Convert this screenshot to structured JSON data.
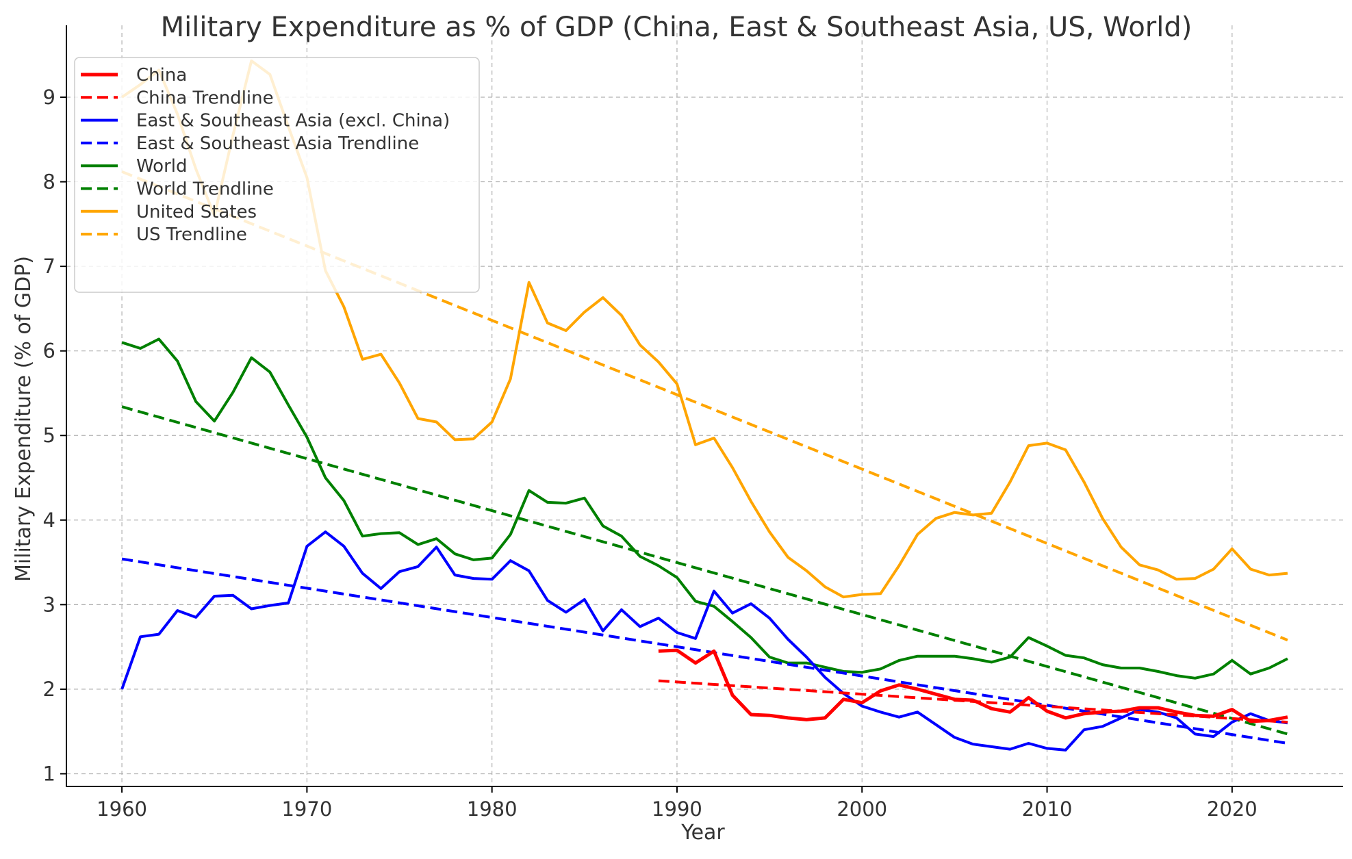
{
  "chart_data": {
    "type": "line",
    "title": "Military Expenditure as % of GDP (China, East & Southeast Asia, US, World)",
    "xlabel": "Year",
    "ylabel": "Military Expenditure (% of GDP)",
    "xlim": [
      1957,
      2026
    ],
    "ylim": [
      0.85,
      9.85
    ],
    "xticks": [
      1960,
      1970,
      1980,
      1990,
      2000,
      2010,
      2020
    ],
    "yticks": [
      1,
      2,
      3,
      4,
      5,
      6,
      7,
      8,
      9
    ],
    "grid": true,
    "legend_position": "top-left",
    "series": [
      {
        "name": "China",
        "color": "#ff0000",
        "style": "solid",
        "width": 5,
        "x": [
          1989,
          1990,
          1991,
          1992,
          1993,
          1994,
          1995,
          1996,
          1997,
          1998,
          1999,
          2000,
          2001,
          2002,
          2003,
          2004,
          2005,
          2006,
          2007,
          2008,
          2009,
          2010,
          2011,
          2012,
          2013,
          2014,
          2015,
          2016,
          2017,
          2018,
          2019,
          2020,
          2021,
          2022,
          2023
        ],
        "y": [
          2.45,
          2.46,
          2.31,
          2.45,
          1.93,
          1.7,
          1.69,
          1.66,
          1.64,
          1.66,
          1.88,
          1.84,
          1.98,
          2.05,
          2.0,
          1.94,
          1.88,
          1.87,
          1.77,
          1.73,
          1.9,
          1.74,
          1.66,
          1.71,
          1.73,
          1.74,
          1.78,
          1.78,
          1.73,
          1.69,
          1.68,
          1.76,
          1.62,
          1.63,
          1.67
        ]
      },
      {
        "name": "China Trendline",
        "color": "#ff0000",
        "style": "dashed",
        "width": 4,
        "x": [
          1989,
          2023
        ],
        "y": [
          2.1,
          1.61
        ]
      },
      {
        "name": "East & Southeast Asia (excl. China)",
        "color": "#0000ff",
        "style": "solid",
        "width": 4,
        "x": [
          1960,
          1961,
          1962,
          1963,
          1964,
          1965,
          1966,
          1967,
          1968,
          1969,
          1970,
          1971,
          1972,
          1973,
          1974,
          1975,
          1976,
          1977,
          1978,
          1979,
          1980,
          1981,
          1982,
          1983,
          1984,
          1985,
          1986,
          1987,
          1988,
          1989,
          1990,
          1991,
          1992,
          1993,
          1994,
          1995,
          1996,
          1997,
          1998,
          1999,
          2000,
          2001,
          2002,
          2003,
          2004,
          2005,
          2006,
          2007,
          2008,
          2009,
          2010,
          2011,
          2012,
          2013,
          2014,
          2015,
          2016,
          2017,
          2018,
          2019,
          2020,
          2021,
          2022,
          2023
        ],
        "y": [
          2.0,
          2.62,
          2.65,
          2.93,
          2.85,
          3.1,
          3.11,
          2.95,
          2.99,
          3.02,
          3.69,
          3.86,
          3.69,
          3.37,
          3.19,
          3.39,
          3.45,
          3.68,
          3.35,
          3.31,
          3.3,
          3.52,
          3.4,
          3.05,
          2.91,
          3.06,
          2.69,
          2.94,
          2.74,
          2.84,
          2.67,
          2.6,
          3.16,
          2.9,
          3.01,
          2.84,
          2.59,
          2.38,
          2.14,
          1.95,
          1.8,
          1.73,
          1.67,
          1.73,
          1.58,
          1.43,
          1.35,
          1.32,
          1.29,
          1.36,
          1.3,
          1.28,
          1.52,
          1.56,
          1.66,
          1.76,
          1.73,
          1.66,
          1.47,
          1.44,
          1.61,
          1.71,
          1.63,
          1.6
        ]
      },
      {
        "name": "East & Southeast Asia Trendline",
        "color": "#0000ff",
        "style": "dashed",
        "width": 4,
        "x": [
          1960,
          2023
        ],
        "y": [
          3.54,
          1.36
        ]
      },
      {
        "name": "World",
        "color": "#008000",
        "style": "solid",
        "width": 4,
        "x": [
          1960,
          1961,
          1962,
          1963,
          1964,
          1965,
          1966,
          1967,
          1968,
          1969,
          1970,
          1971,
          1972,
          1973,
          1974,
          1975,
          1976,
          1977,
          1978,
          1979,
          1980,
          1981,
          1982,
          1983,
          1984,
          1985,
          1986,
          1987,
          1988,
          1989,
          1990,
          1991,
          1992,
          1993,
          1994,
          1995,
          1996,
          1997,
          1998,
          1999,
          2000,
          2001,
          2002,
          2003,
          2004,
          2005,
          2006,
          2007,
          2008,
          2009,
          2010,
          2011,
          2012,
          2013,
          2014,
          2015,
          2016,
          2017,
          2018,
          2019,
          2020,
          2021,
          2022,
          2023
        ],
        "y": [
          6.1,
          6.03,
          6.14,
          5.88,
          5.4,
          5.17,
          5.51,
          5.92,
          5.75,
          5.36,
          4.98,
          4.5,
          4.23,
          3.81,
          3.84,
          3.85,
          3.71,
          3.78,
          3.6,
          3.53,
          3.55,
          3.83,
          4.35,
          4.21,
          4.2,
          4.26,
          3.93,
          3.81,
          3.57,
          3.46,
          3.32,
          3.04,
          2.98,
          2.8,
          2.61,
          2.38,
          2.31,
          2.31,
          2.26,
          2.21,
          2.2,
          2.24,
          2.34,
          2.39,
          2.39,
          2.39,
          2.36,
          2.32,
          2.38,
          2.61,
          2.51,
          2.4,
          2.37,
          2.29,
          2.25,
          2.25,
          2.21,
          2.16,
          2.13,
          2.18,
          2.34,
          2.18,
          2.25,
          2.36
        ]
      },
      {
        "name": "World Trendline",
        "color": "#008000",
        "style": "dashed",
        "width": 4,
        "x": [
          1960,
          2023
        ],
        "y": [
          5.34,
          1.47
        ]
      },
      {
        "name": "United States",
        "color": "#ffa500",
        "style": "solid",
        "width": 4,
        "x": [
          1960,
          1961,
          1962,
          1963,
          1964,
          1965,
          1966,
          1967,
          1968,
          1969,
          1970,
          1971,
          1972,
          1973,
          1974,
          1975,
          1976,
          1977,
          1978,
          1979,
          1980,
          1981,
          1982,
          1983,
          1984,
          1985,
          1986,
          1987,
          1988,
          1989,
          1990,
          1991,
          1992,
          1993,
          1994,
          1995,
          1996,
          1997,
          1998,
          1999,
          2000,
          2001,
          2002,
          2003,
          2004,
          2005,
          2006,
          2007,
          2008,
          2009,
          2010,
          2011,
          2012,
          2013,
          2014,
          2015,
          2016,
          2017,
          2018,
          2019,
          2020,
          2021,
          2022,
          2023
        ],
        "y": [
          9.0,
          9.15,
          9.32,
          8.8,
          8.15,
          7.6,
          8.55,
          9.43,
          9.27,
          8.65,
          8.05,
          6.95,
          6.52,
          5.9,
          5.96,
          5.62,
          5.2,
          5.16,
          4.95,
          4.96,
          5.16,
          5.67,
          6.81,
          6.33,
          6.24,
          6.46,
          6.63,
          6.42,
          6.07,
          5.87,
          5.61,
          4.89,
          4.97,
          4.62,
          4.22,
          3.86,
          3.56,
          3.4,
          3.21,
          3.09,
          3.12,
          3.13,
          3.46,
          3.83,
          4.02,
          4.09,
          4.06,
          4.08,
          4.45,
          4.88,
          4.91,
          4.83,
          4.45,
          4.02,
          3.68,
          3.47,
          3.41,
          3.3,
          3.31,
          3.42,
          3.66,
          3.42,
          3.35,
          3.37
        ]
      },
      {
        "name": "US Trendline",
        "color": "#ffa500",
        "style": "dashed",
        "width": 4,
        "x": [
          1960,
          2023
        ],
        "y": [
          8.12,
          2.58
        ]
      }
    ]
  }
}
